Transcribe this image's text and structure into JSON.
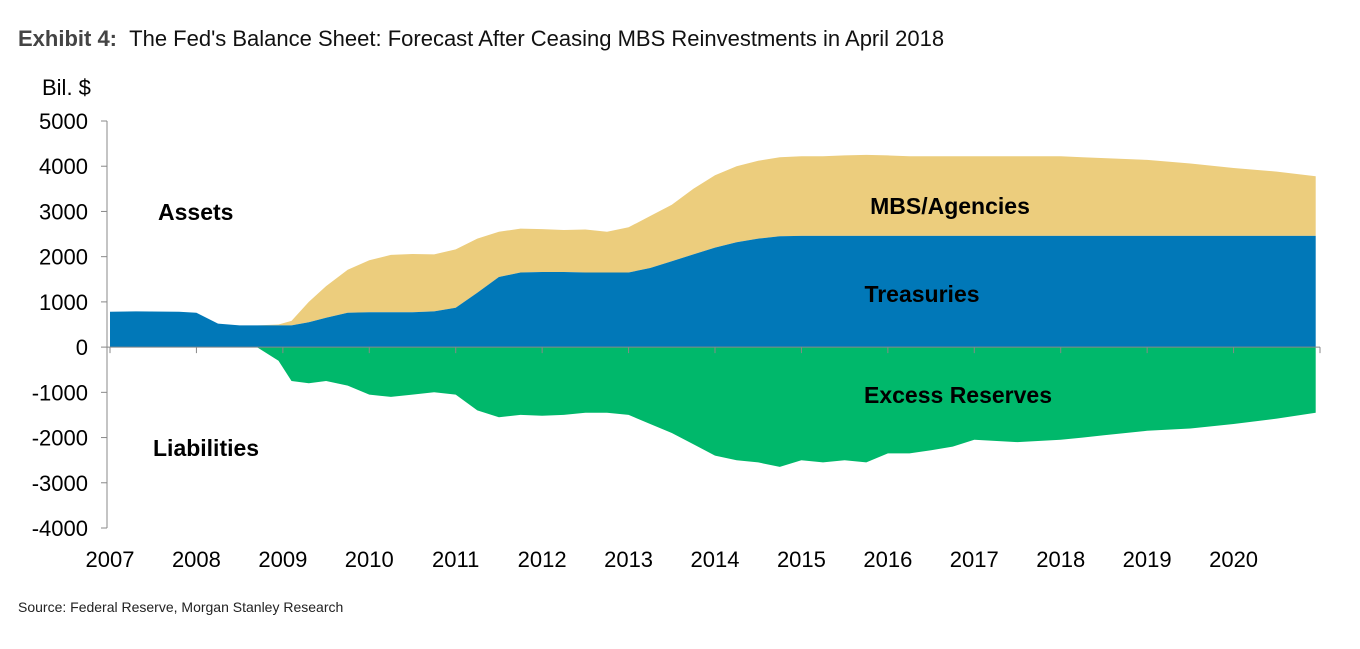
{
  "header": {
    "exhibit": "Exhibit 4:",
    "title": "The Fed's Balance Sheet: Forecast After Ceasing MBS Reinvestments in April 2018"
  },
  "source": "Source: Federal Reserve, Morgan Stanley Research",
  "colors": {
    "mbs": "#ECCD7D",
    "treasuries": "#0178B8",
    "reserves": "#00B86B",
    "axis": "#888888"
  },
  "chart_data": {
    "type": "area",
    "title": "The Fed's Balance Sheet: Forecast After Ceasing MBS Reinvestments in April 2018",
    "ylabel": "Bil. $",
    "xlabel": "",
    "xlim": [
      2007,
      2021
    ],
    "ylim": [
      -4000,
      5000
    ],
    "yticks": [
      5000,
      4000,
      3000,
      2000,
      1000,
      0,
      -1000,
      -2000,
      -3000,
      -4000
    ],
    "xticks": [
      "2007",
      "2008",
      "2009",
      "2010",
      "2011",
      "2012",
      "2013",
      "2014",
      "2015",
      "2016",
      "2017",
      "2018",
      "2019",
      "2020"
    ],
    "area_labels": {
      "assets": "Assets",
      "liabilities": "Liabilities",
      "mbs": "MBS/Agencies",
      "treasuries": "Treasuries",
      "reserves": "Excess Reserves"
    },
    "x": [
      2007.0,
      2007.3,
      2007.8,
      2008.0,
      2008.25,
      2008.5,
      2008.7,
      2008.95,
      2009.1,
      2009.3,
      2009.5,
      2009.75,
      2010.0,
      2010.25,
      2010.5,
      2010.75,
      2011.0,
      2011.25,
      2011.5,
      2011.75,
      2012.0,
      2012.25,
      2012.5,
      2012.75,
      2013.0,
      2013.25,
      2013.5,
      2013.75,
      2014.0,
      2014.25,
      2014.5,
      2014.75,
      2015.0,
      2015.25,
      2015.5,
      2015.75,
      2016.0,
      2016.25,
      2016.5,
      2016.75,
      2017.0,
      2017.5,
      2018.0,
      2018.25,
      2018.5,
      2019.0,
      2019.5,
      2020.0,
      2020.5,
      2020.95
    ],
    "series": [
      {
        "name": "Treasuries",
        "values": [
          780,
          790,
          780,
          760,
          520,
          480,
          480,
          480,
          480,
          550,
          650,
          760,
          770,
          770,
          770,
          790,
          870,
          1200,
          1550,
          1650,
          1660,
          1660,
          1650,
          1650,
          1650,
          1750,
          1900,
          2050,
          2200,
          2320,
          2400,
          2450,
          2460,
          2460,
          2460,
          2460,
          2460,
          2460,
          2460,
          2460,
          2460,
          2460,
          2460,
          2460,
          2460,
          2460,
          2460,
          2460,
          2460,
          2460
        ]
      },
      {
        "name": "MBS/Agencies",
        "values": [
          0,
          0,
          0,
          0,
          0,
          0,
          0,
          20,
          100,
          450,
          700,
          950,
          1150,
          1270,
          1290,
          1260,
          1290,
          1200,
          1000,
          970,
          950,
          930,
          950,
          900,
          1000,
          1150,
          1250,
          1450,
          1600,
          1680,
          1720,
          1750,
          1760,
          1760,
          1780,
          1790,
          1780,
          1760,
          1760,
          1760,
          1760,
          1760,
          1760,
          1740,
          1720,
          1680,
          1600,
          1500,
          1420,
          1320
        ]
      },
      {
        "name": "Excess Reserves",
        "values": [
          0,
          0,
          0,
          0,
          0,
          0,
          0,
          -300,
          -750,
          -800,
          -750,
          -850,
          -1050,
          -1100,
          -1050,
          -1000,
          -1050,
          -1400,
          -1550,
          -1500,
          -1520,
          -1500,
          -1450,
          -1450,
          -1500,
          -1700,
          -1900,
          -2150,
          -2400,
          -2500,
          -2550,
          -2650,
          -2500,
          -2550,
          -2500,
          -2550,
          -2350,
          -2350,
          -2280,
          -2200,
          -2050,
          -2100,
          -2050,
          -2000,
          -1950,
          -1850,
          -1800,
          -1700,
          -1580,
          -1450
        ]
      }
    ]
  }
}
